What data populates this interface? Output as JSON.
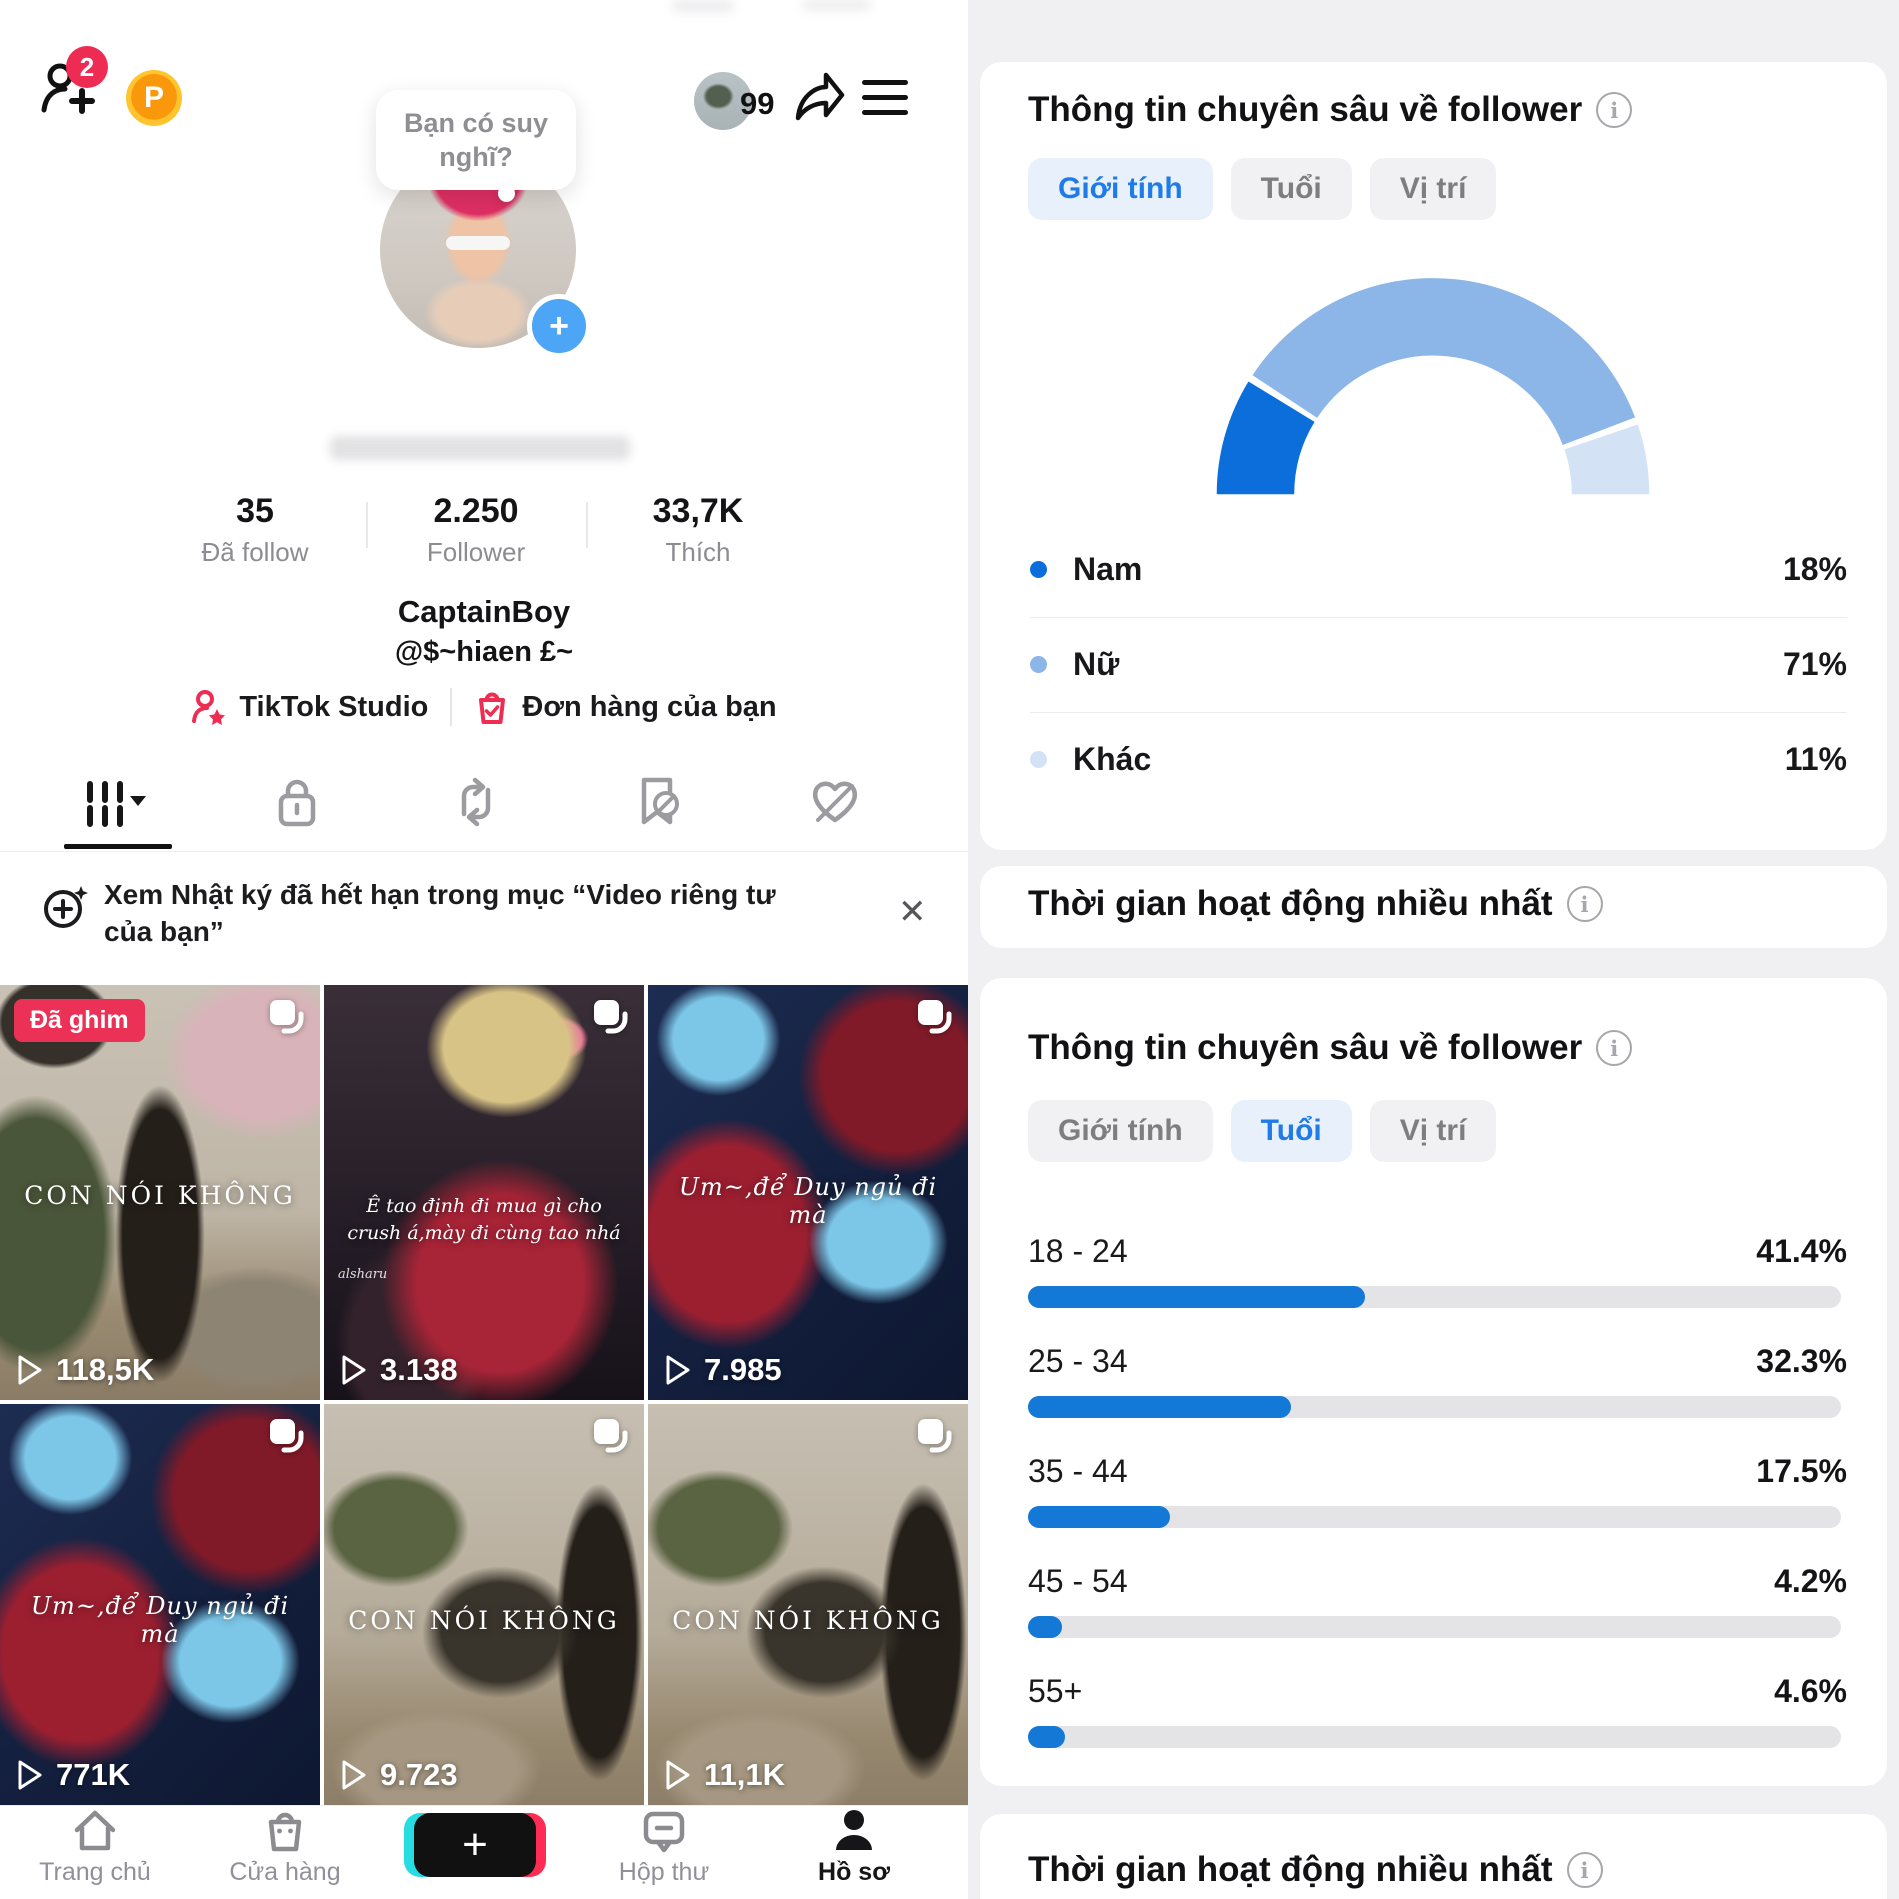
{
  "colors": {
    "accent_blue": "#1f7be8",
    "bar_blue": "#1478d6",
    "gauge_dark": "#0c6edb",
    "gauge_mid": "#8cb5e8",
    "gauge_light": "#d3e2f5",
    "tiktok_red": "#ee2b52",
    "pill_active_bg": "#e7f0fb"
  },
  "left": {
    "topbar": {
      "friend_badge": "2",
      "coin_label": "P",
      "inbox_count": "99"
    },
    "bubble_text": "Bạn có suy nghĩ?",
    "stats": [
      {
        "value": "35",
        "label": "Đã follow"
      },
      {
        "value": "2.250",
        "label": "Follower"
      },
      {
        "value": "33,7K",
        "label": "Thích"
      }
    ],
    "name": "CaptainBoy",
    "handle": "@$~hiaen £~",
    "links": {
      "studio": "TikTok Studio",
      "orders": "Đơn hàng của bạn"
    },
    "notice": {
      "text": "Xem Nhật ký đã hết hạn trong mục “Video riêng tư của bạn”",
      "close": "✕"
    },
    "pinned_badge": "Đã ghim",
    "videos": [
      {
        "caption": "CON NÓI KHÔNG",
        "views": "118,5K",
        "pinned": true
      },
      {
        "caption": "Ê tao định đi mua gì cho crush á,mày đi cùng tao nhá",
        "views": "3.138",
        "watermark": "alsharu"
      },
      {
        "caption": "Um~,để Duy ngủ đi mà",
        "views": "7.985"
      },
      {
        "caption": "Um~,để Duy ngủ đi mà",
        "views": "771K"
      },
      {
        "caption": "CON NÓI KHÔNG",
        "views": "9.723"
      },
      {
        "caption": "CON NÓI KHÔNG",
        "views": "11,1K"
      }
    ],
    "nav": {
      "home": "Trang chủ",
      "shop": "Cửa hàng",
      "plus": "+",
      "inbox": "Hộp thư",
      "profile": "Hồ sơ"
    }
  },
  "right": {
    "gender_card": {
      "title": "Thông tin chuyên sâu về follower",
      "tabs": [
        {
          "label": "Giới tính",
          "active": true
        },
        {
          "label": "Tuổi",
          "active": false
        },
        {
          "label": "Vị trí",
          "active": false
        }
      ],
      "legend": [
        {
          "label": "Nam",
          "value": "18%"
        },
        {
          "label": "Nữ",
          "value": "71%"
        },
        {
          "label": "Khác",
          "value": "11%"
        }
      ]
    },
    "active_time_title": "Thời gian hoạt động nhiều nhất",
    "age_card": {
      "title": "Thông tin chuyên sâu về follower",
      "tabs": [
        {
          "label": "Giới tính",
          "active": false
        },
        {
          "label": "Tuổi",
          "active": true
        },
        {
          "label": "Vị trí",
          "active": false
        }
      ],
      "rows": [
        {
          "label": "18 - 24",
          "value": "41.4%",
          "pct": 41.4
        },
        {
          "label": "25 - 34",
          "value": "32.3%",
          "pct": 32.3
        },
        {
          "label": "35 - 44",
          "value": "17.5%",
          "pct": 17.5
        },
        {
          "label": "45 - 54",
          "value": "4.2%",
          "pct": 4.2
        },
        {
          "label": "55+",
          "value": "4.6%",
          "pct": 4.6
        }
      ]
    }
  },
  "chart_data": [
    {
      "type": "pie",
      "style": "half-donut-gauge",
      "title": "Thông tin chuyên sâu về follower — Giới tính",
      "categories": [
        "Nam",
        "Nữ",
        "Khác"
      ],
      "values": [
        18,
        71,
        11
      ],
      "unit": "%",
      "colors": [
        "#0c6edb",
        "#8cb5e8",
        "#d3e2f5"
      ],
      "legend_position": "below"
    },
    {
      "type": "bar",
      "orientation": "horizontal",
      "title": "Thông tin chuyên sâu về follower — Tuổi",
      "categories": [
        "18 - 24",
        "25 - 34",
        "35 - 44",
        "45 - 54",
        "55+"
      ],
      "values": [
        41.4,
        32.3,
        17.5,
        4.2,
        4.6
      ],
      "unit": "%",
      "xlim": [
        0,
        100
      ],
      "bar_color": "#1478d6",
      "track_color": "#e4e4e7",
      "grid": false
    }
  ]
}
